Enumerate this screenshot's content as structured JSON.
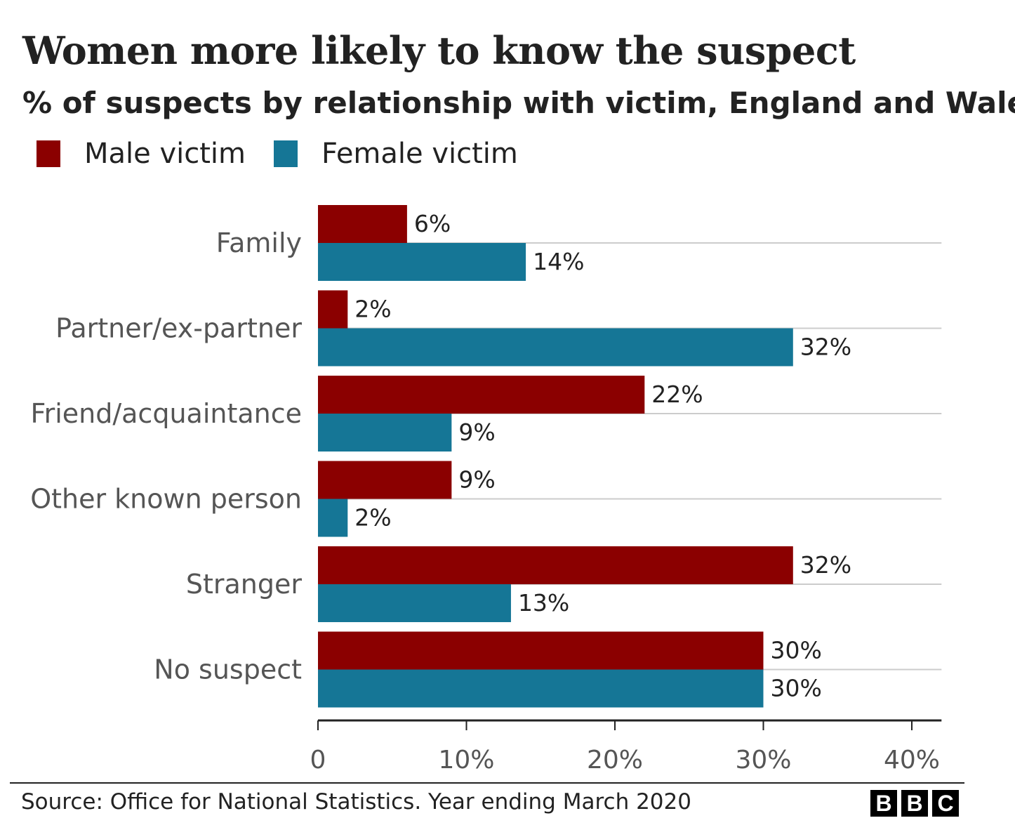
{
  "title": "Women more likely to know the suspect",
  "subtitle": "% of suspects by relationship with victim, England and Wales",
  "legend": [
    {
      "label": "Male victim",
      "color": "#8B0000"
    },
    {
      "label": "Female victim",
      "color": "#157696"
    }
  ],
  "chart_data": {
    "type": "bar",
    "orientation": "horizontal",
    "categories": [
      "Family",
      "Partner/ex-partner",
      "Friend/acquaintance",
      "Other known person",
      "Stranger",
      "No suspect"
    ],
    "series": [
      {
        "name": "Male victim",
        "color": "#8B0000",
        "values": [
          6,
          2,
          22,
          9,
          32,
          30
        ],
        "labels": [
          "6%",
          "2%",
          "22%",
          "9%",
          "32%",
          "30%"
        ]
      },
      {
        "name": "Female victim",
        "color": "#157696",
        "values": [
          14,
          32,
          9,
          2,
          13,
          30
        ],
        "labels": [
          "14%",
          "32%",
          "9%",
          "2%",
          "13%",
          "30%"
        ]
      }
    ],
    "xlim": [
      0,
      42
    ],
    "xticks": [
      0,
      10,
      20,
      30,
      40
    ],
    "xtick_labels": [
      "0",
      "10%",
      "20%",
      "30%",
      "40%"
    ],
    "grid": true,
    "legend_position": "top-left"
  },
  "source": "Source: Office for National Statistics. Year ending March 2020",
  "logo_letters": [
    "B",
    "B",
    "C"
  ]
}
